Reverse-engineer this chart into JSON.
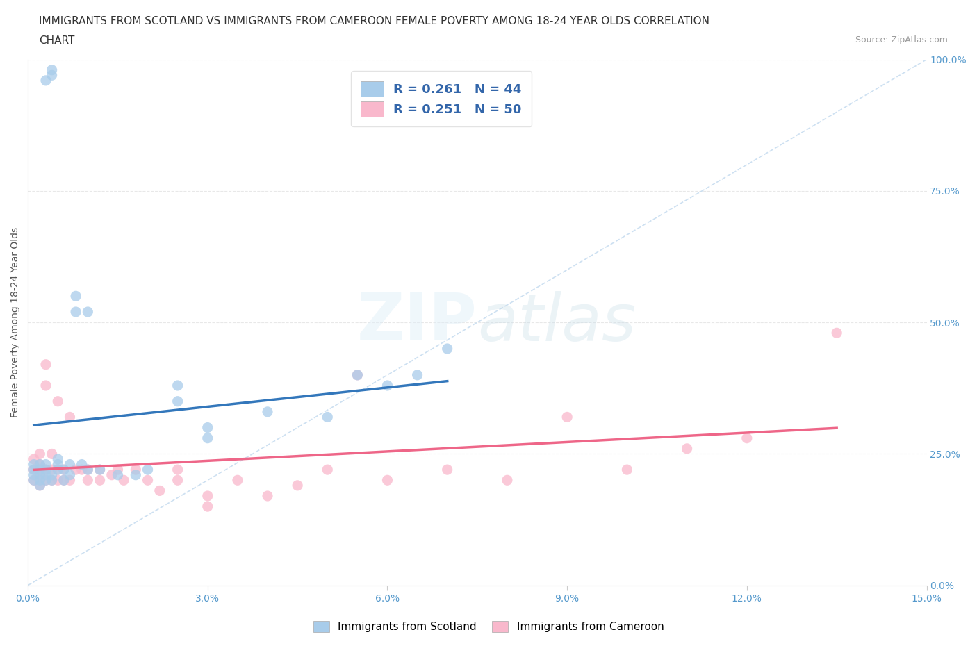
{
  "title_line1": "IMMIGRANTS FROM SCOTLAND VS IMMIGRANTS FROM CAMEROON FEMALE POVERTY AMONG 18-24 YEAR OLDS CORRELATION",
  "title_line2": "CHART",
  "source": "Source: ZipAtlas.com",
  "ylabel": "Female Poverty Among 18-24 Year Olds",
  "xlim": [
    0.0,
    0.15
  ],
  "ylim": [
    0.0,
    1.0
  ],
  "xticks": [
    0.0,
    0.03,
    0.06,
    0.09,
    0.12,
    0.15
  ],
  "yticks_right": [
    0.0,
    0.25,
    0.5,
    0.75,
    1.0
  ],
  "scotland_R": 0.261,
  "scotland_N": 44,
  "cameroon_R": 0.251,
  "cameroon_N": 50,
  "scotland_color": "#a8ccea",
  "cameroon_color": "#f9b8cc",
  "scotland_line_color": "#3377bb",
  "cameroon_line_color": "#ee6688",
  "diagonal_color": "#c8ddf0",
  "grid_color": "#e8e8e8",
  "watermark_zip": "ZIP",
  "watermark_atlas": "atlas",
  "scotland_x": [
    0.001,
    0.001,
    0.001,
    0.001,
    0.002,
    0.002,
    0.002,
    0.002,
    0.002,
    0.003,
    0.003,
    0.003,
    0.003,
    0.003,
    0.004,
    0.004,
    0.004,
    0.004,
    0.005,
    0.005,
    0.005,
    0.006,
    0.006,
    0.007,
    0.007,
    0.008,
    0.008,
    0.009,
    0.01,
    0.01,
    0.012,
    0.015,
    0.018,
    0.02,
    0.025,
    0.025,
    0.03,
    0.03,
    0.04,
    0.05,
    0.055,
    0.06,
    0.065,
    0.07
  ],
  "scotland_y": [
    0.2,
    0.21,
    0.22,
    0.23,
    0.19,
    0.2,
    0.21,
    0.22,
    0.23,
    0.2,
    0.21,
    0.22,
    0.23,
    0.96,
    0.97,
    0.98,
    0.2,
    0.21,
    0.22,
    0.23,
    0.24,
    0.2,
    0.22,
    0.21,
    0.23,
    0.52,
    0.55,
    0.23,
    0.22,
    0.52,
    0.22,
    0.21,
    0.21,
    0.22,
    0.35,
    0.38,
    0.28,
    0.3,
    0.33,
    0.32,
    0.4,
    0.38,
    0.4,
    0.45
  ],
  "cameroon_x": [
    0.001,
    0.001,
    0.001,
    0.002,
    0.002,
    0.002,
    0.002,
    0.003,
    0.003,
    0.003,
    0.003,
    0.004,
    0.004,
    0.004,
    0.005,
    0.005,
    0.005,
    0.006,
    0.006,
    0.007,
    0.007,
    0.008,
    0.009,
    0.01,
    0.01,
    0.012,
    0.012,
    0.014,
    0.015,
    0.016,
    0.018,
    0.02,
    0.022,
    0.025,
    0.025,
    0.03,
    0.03,
    0.035,
    0.04,
    0.045,
    0.05,
    0.055,
    0.06,
    0.07,
    0.08,
    0.09,
    0.1,
    0.11,
    0.12,
    0.135
  ],
  "cameroon_y": [
    0.2,
    0.22,
    0.24,
    0.19,
    0.21,
    0.23,
    0.25,
    0.2,
    0.22,
    0.38,
    0.42,
    0.2,
    0.22,
    0.25,
    0.2,
    0.22,
    0.35,
    0.2,
    0.22,
    0.2,
    0.32,
    0.22,
    0.22,
    0.2,
    0.22,
    0.2,
    0.22,
    0.21,
    0.22,
    0.2,
    0.22,
    0.2,
    0.18,
    0.22,
    0.2,
    0.17,
    0.15,
    0.2,
    0.17,
    0.19,
    0.22,
    0.4,
    0.2,
    0.22,
    0.2,
    0.32,
    0.22,
    0.26,
    0.28,
    0.48
  ]
}
